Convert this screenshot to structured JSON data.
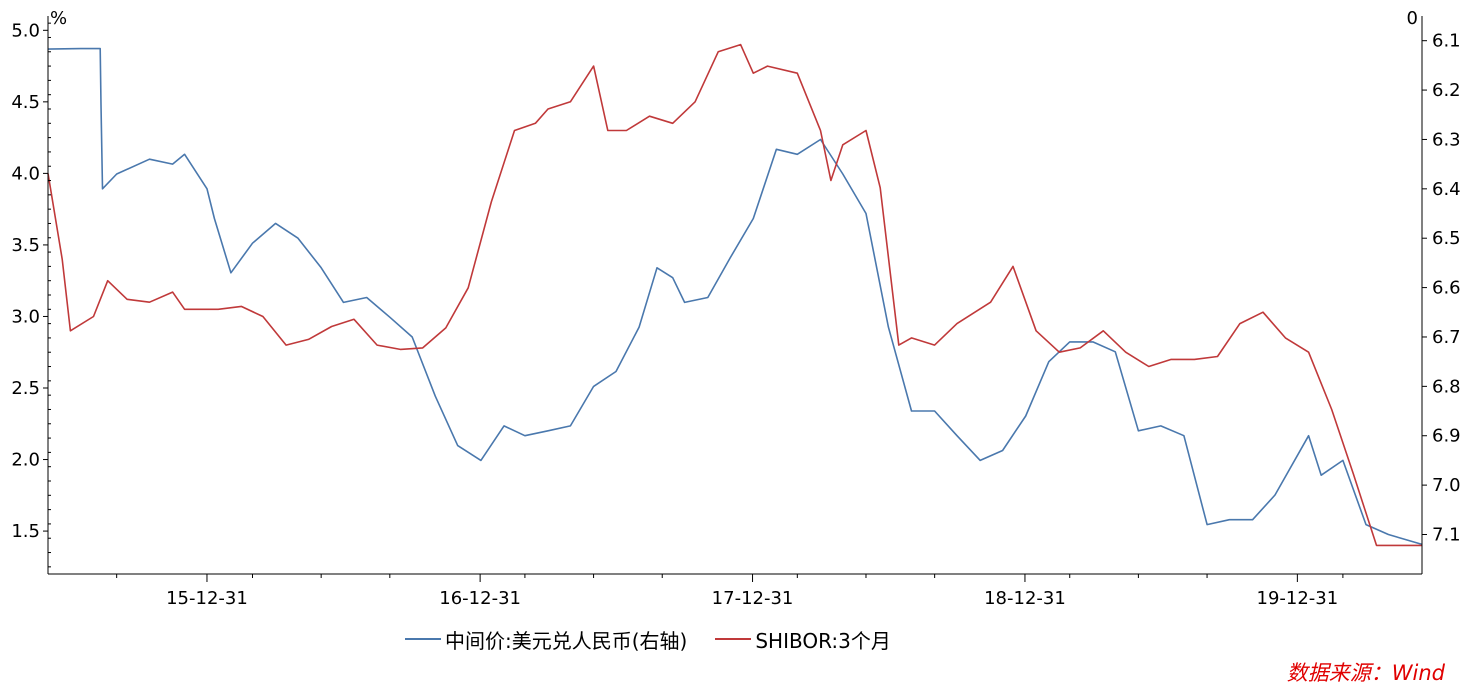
{
  "colors": {
    "usdcny": "#4a78ad",
    "shibor": "#c0393a",
    "source": "#e00000",
    "axis": "#000000"
  },
  "chart_data": {
    "type": "line",
    "left_axis": {
      "unit": "%",
      "ylim": [
        1.2,
        5.1
      ],
      "ticks": [
        5.0,
        4.5,
        4.0,
        3.5,
        3.0,
        2.5,
        2.0,
        1.5
      ]
    },
    "right_axis": {
      "unit": "0",
      "inverted": true,
      "ylim": [
        6.05,
        7.18
      ],
      "ticks": [
        6.1,
        6.2,
        6.3,
        6.4,
        6.5,
        6.6,
        6.7,
        6.8,
        6.9,
        7.0,
        7.1
      ]
    },
    "x_axis": {
      "range": [
        "2015-06-01",
        "2020-06-15"
      ],
      "tick_labels": [
        {
          "date": "2015-12-31",
          "label": "15-12-31"
        },
        {
          "date": "2016-12-31",
          "label": "16-12-31"
        },
        {
          "date": "2017-12-31",
          "label": "17-12-31"
        },
        {
          "date": "2018-12-31",
          "label": "18-12-31"
        },
        {
          "date": "2019-12-31",
          "label": "19-12-31"
        }
      ],
      "minor_ticks": [
        "2015-09-01",
        "2016-03-01",
        "2016-06-01",
        "2016-09-01",
        "2017-03-01",
        "2017-06-01",
        "2017-09-01",
        "2018-03-01",
        "2018-06-01",
        "2018-09-01",
        "2019-03-01",
        "2019-06-01",
        "2019-09-01",
        "2020-03-01"
      ]
    },
    "series": [
      {
        "name": "中间价:美元兑人民币(右轴)",
        "axis": "right",
        "color": "#4a78ad",
        "points": [
          [
            "2015-06-01",
            6.117
          ],
          [
            "2015-07-15",
            6.116
          ],
          [
            "2015-08-10",
            6.116
          ],
          [
            "2015-08-11",
            6.23
          ],
          [
            "2015-08-13",
            6.4
          ],
          [
            "2015-09-01",
            6.37
          ],
          [
            "2015-10-15",
            6.34
          ],
          [
            "2015-11-15",
            6.35
          ],
          [
            "2015-12-01",
            6.33
          ],
          [
            "2015-12-31",
            6.4
          ],
          [
            "2016-01-10",
            6.46
          ],
          [
            "2016-02-01",
            6.57
          ],
          [
            "2016-03-01",
            6.51
          ],
          [
            "2016-04-01",
            6.47
          ],
          [
            "2016-05-01",
            6.5
          ],
          [
            "2016-06-01",
            6.56
          ],
          [
            "2016-07-01",
            6.63
          ],
          [
            "2016-08-01",
            6.62
          ],
          [
            "2016-09-01",
            6.66
          ],
          [
            "2016-10-01",
            6.7
          ],
          [
            "2016-11-01",
            6.82
          ],
          [
            "2016-12-01",
            6.92
          ],
          [
            "2017-01-01",
            6.95
          ],
          [
            "2017-02-01",
            6.88
          ],
          [
            "2017-03-01",
            6.9
          ],
          [
            "2017-04-01",
            6.89
          ],
          [
            "2017-05-01",
            6.88
          ],
          [
            "2017-06-01",
            6.8
          ],
          [
            "2017-07-01",
            6.77
          ],
          [
            "2017-08-01",
            6.68
          ],
          [
            "2017-08-25",
            6.56
          ],
          [
            "2017-09-15",
            6.58
          ],
          [
            "2017-10-01",
            6.63
          ],
          [
            "2017-11-01",
            6.62
          ],
          [
            "2017-12-01",
            6.54
          ],
          [
            "2018-01-01",
            6.46
          ],
          [
            "2018-02-01",
            6.32
          ],
          [
            "2018-03-01",
            6.33
          ],
          [
            "2018-04-01",
            6.3
          ],
          [
            "2018-05-01",
            6.37
          ],
          [
            "2018-06-01",
            6.45
          ],
          [
            "2018-07-01",
            6.68
          ],
          [
            "2018-08-01",
            6.85
          ],
          [
            "2018-09-01",
            6.85
          ],
          [
            "2018-10-01",
            6.9
          ],
          [
            "2018-11-01",
            6.95
          ],
          [
            "2018-12-01",
            6.93
          ],
          [
            "2019-01-01",
            6.86
          ],
          [
            "2019-02-01",
            6.75
          ],
          [
            "2019-03-01",
            6.71
          ],
          [
            "2019-04-01",
            6.71
          ],
          [
            "2019-05-01",
            6.73
          ],
          [
            "2019-06-01",
            6.89
          ],
          [
            "2019-07-01",
            6.88
          ],
          [
            "2019-08-01",
            6.9
          ],
          [
            "2019-09-01",
            7.08
          ],
          [
            "2019-10-01",
            7.07
          ],
          [
            "2019-11-01",
            7.07
          ],
          [
            "2019-12-01",
            7.02
          ],
          [
            "2020-01-15",
            6.9
          ],
          [
            "2020-02-01",
            6.98
          ],
          [
            "2020-03-01",
            6.95
          ],
          [
            "2020-04-01",
            7.08
          ],
          [
            "2020-05-01",
            7.1
          ],
          [
            "2020-06-15",
            7.12
          ]
        ]
      },
      {
        "name": "SHIBOR:3个月",
        "axis": "left",
        "color": "#c0393a",
        "points": [
          [
            "2015-06-01",
            4.0
          ],
          [
            "2015-06-20",
            3.4
          ],
          [
            "2015-07-01",
            2.9
          ],
          [
            "2015-08-01",
            3.0
          ],
          [
            "2015-08-20",
            3.25
          ],
          [
            "2015-09-15",
            3.12
          ],
          [
            "2015-10-15",
            3.1
          ],
          [
            "2015-11-15",
            3.17
          ],
          [
            "2015-12-01",
            3.05
          ],
          [
            "2016-01-15",
            3.05
          ],
          [
            "2016-02-15",
            3.07
          ],
          [
            "2016-03-15",
            3.0
          ],
          [
            "2016-04-15",
            2.8
          ],
          [
            "2016-05-15",
            2.84
          ],
          [
            "2016-06-15",
            2.93
          ],
          [
            "2016-07-15",
            2.98
          ],
          [
            "2016-08-15",
            2.8
          ],
          [
            "2016-09-15",
            2.77
          ],
          [
            "2016-10-15",
            2.78
          ],
          [
            "2016-11-15",
            2.92
          ],
          [
            "2016-12-15",
            3.2
          ],
          [
            "2017-01-15",
            3.8
          ],
          [
            "2017-02-15",
            4.3
          ],
          [
            "2017-03-15",
            4.35
          ],
          [
            "2017-04-01",
            4.45
          ],
          [
            "2017-05-01",
            4.5
          ],
          [
            "2017-06-01",
            4.75
          ],
          [
            "2017-06-20",
            4.3
          ],
          [
            "2017-07-15",
            4.3
          ],
          [
            "2017-08-15",
            4.4
          ],
          [
            "2017-09-15",
            4.35
          ],
          [
            "2017-10-15",
            4.5
          ],
          [
            "2017-11-15",
            4.85
          ],
          [
            "2017-12-15",
            4.9
          ],
          [
            "2018-01-01",
            4.7
          ],
          [
            "2018-01-20",
            4.75
          ],
          [
            "2018-03-01",
            4.7
          ],
          [
            "2018-04-01",
            4.3
          ],
          [
            "2018-04-15",
            3.95
          ],
          [
            "2018-05-01",
            4.2
          ],
          [
            "2018-06-01",
            4.3
          ],
          [
            "2018-06-20",
            3.9
          ],
          [
            "2018-07-15",
            2.8
          ],
          [
            "2018-08-01",
            2.85
          ],
          [
            "2018-09-01",
            2.8
          ],
          [
            "2018-10-01",
            2.95
          ],
          [
            "2018-11-15",
            3.1
          ],
          [
            "2018-12-15",
            3.35
          ],
          [
            "2019-01-15",
            2.9
          ],
          [
            "2019-02-15",
            2.75
          ],
          [
            "2019-03-15",
            2.78
          ],
          [
            "2019-04-15",
            2.9
          ],
          [
            "2019-05-15",
            2.75
          ],
          [
            "2019-06-15",
            2.65
          ],
          [
            "2019-07-15",
            2.7
          ],
          [
            "2019-08-15",
            2.7
          ],
          [
            "2019-09-15",
            2.72
          ],
          [
            "2019-10-15",
            2.95
          ],
          [
            "2019-11-15",
            3.03
          ],
          [
            "2019-12-15",
            2.85
          ],
          [
            "2020-01-15",
            2.75
          ],
          [
            "2020-02-15",
            2.35
          ],
          [
            "2020-03-15",
            1.9
          ],
          [
            "2020-04-15",
            1.4
          ],
          [
            "2020-05-15",
            1.4
          ],
          [
            "2020-06-15",
            1.4
          ]
        ]
      }
    ]
  },
  "legend": {
    "usdcny": "中间价:美元兑人民币(右轴)",
    "shibor": "SHIBOR:3个月"
  },
  "source": "数据来源：Wind"
}
